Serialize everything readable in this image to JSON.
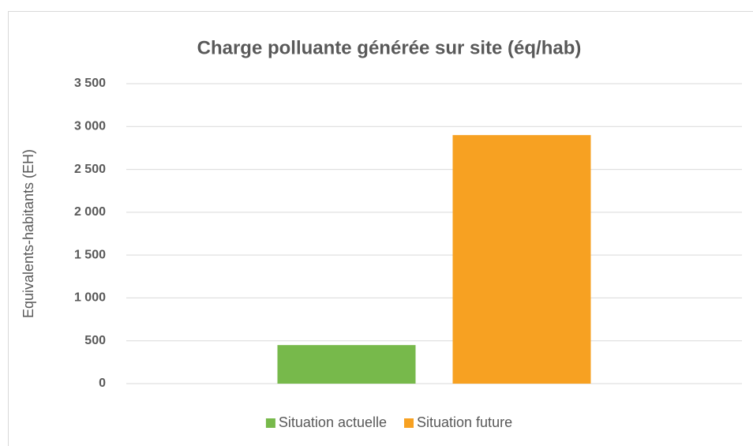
{
  "chart_data": {
    "type": "bar",
    "title": "Charge polluante générée sur site (éq/hab)",
    "y_label": "Equivalents-habitants (EH)",
    "categories": [
      null
    ],
    "series": [
      {
        "name": "Situation actuelle",
        "color": "#77b94b",
        "values": [
          450
        ]
      },
      {
        "name": "Situation future",
        "color": "#f7a122",
        "values": [
          2900
        ]
      }
    ],
    "ylim": [
      0,
      3500
    ],
    "yticks": [
      0,
      500,
      {
        "value": 1000,
        "label": "1 000"
      },
      {
        "value": 1500,
        "label": "1 500"
      },
      {
        "value": 2000,
        "label": "2 000"
      },
      {
        "value": 2500,
        "label": "2 500"
      },
      {
        "value": 3000,
        "label": "3 000"
      },
      {
        "value": 3500,
        "label": "3 500"
      }
    ],
    "grid": true,
    "legend": "bottom"
  }
}
